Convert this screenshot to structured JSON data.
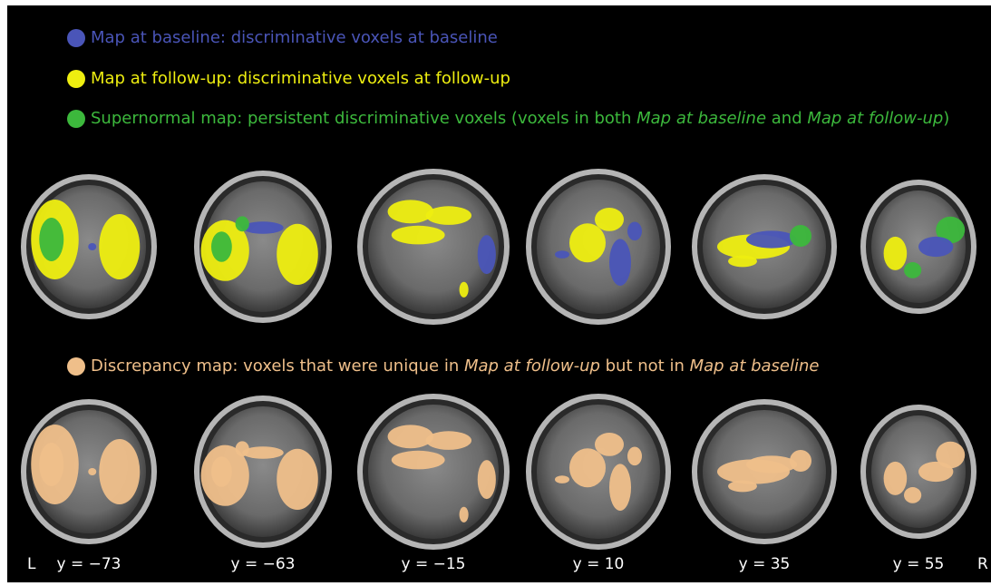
{
  "legend": [
    {
      "color": "#4a55b8",
      "parts": [
        {
          "text": "Map at baseline: discriminative voxels at baseline",
          "italic": false
        }
      ]
    },
    {
      "color": "#eeee10",
      "parts": [
        {
          "text": "Map at follow-up: discriminative voxels at follow-up",
          "italic": false
        }
      ]
    },
    {
      "color": "#3cb83c",
      "parts": [
        {
          "text": "Supernormal map: persistent discriminative voxels (voxels in both ",
          "italic": false
        },
        {
          "text": "Map at baseline",
          "italic": true
        },
        {
          "text": " and ",
          "italic": false
        },
        {
          "text": "Map at follow-up",
          "italic": true
        },
        {
          "text": ")",
          "italic": false
        }
      ]
    },
    {
      "color": "#efbf8a",
      "parts": [
        {
          "text": "Discrepancy map: voxels that were unique in ",
          "italic": false
        },
        {
          "text": "Map at follow-up",
          "italic": true
        },
        {
          "text": " but not in ",
          "italic": false
        },
        {
          "text": "Map at baseline",
          "italic": true
        }
      ]
    }
  ],
  "slices": [
    "y = −73",
    "y = −63",
    "y = −15",
    "y = 10",
    "y = 35",
    "y = 55"
  ],
  "side_labels": {
    "left": "L",
    "right": "R"
  }
}
